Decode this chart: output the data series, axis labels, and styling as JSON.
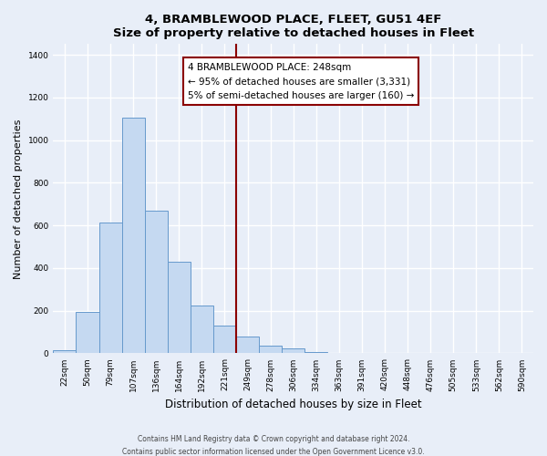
{
  "title1": "4, BRAMBLEWOOD PLACE, FLEET, GU51 4EF",
  "title2": "Size of property relative to detached houses in Fleet",
  "xlabel": "Distribution of detached houses by size in Fleet",
  "ylabel": "Number of detached properties",
  "bar_labels": [
    "22sqm",
    "50sqm",
    "79sqm",
    "107sqm",
    "136sqm",
    "164sqm",
    "192sqm",
    "221sqm",
    "249sqm",
    "278sqm",
    "306sqm",
    "334sqm",
    "363sqm",
    "391sqm",
    "420sqm",
    "448sqm",
    "476sqm",
    "505sqm",
    "533sqm",
    "562sqm",
    "590sqm"
  ],
  "bar_values": [
    15,
    195,
    615,
    1105,
    670,
    430,
    225,
    130,
    80,
    35,
    25,
    5,
    2,
    0,
    0,
    0,
    0,
    0,
    0,
    0,
    0
  ],
  "bar_color": "#c5d9f1",
  "bar_edge_color": "#6699cc",
  "vline_color": "#8b0000",
  "annotation_title": "4 BRAMBLEWOOD PLACE: 248sqm",
  "annotation_line1": "← 95% of detached houses are smaller (3,331)",
  "annotation_line2": "5% of semi-detached houses are larger (160) →",
  "annotation_box_edge": "#8b0000",
  "ylim": [
    0,
    1450
  ],
  "yticks": [
    0,
    200,
    400,
    600,
    800,
    1000,
    1200,
    1400
  ],
  "footer1": "Contains HM Land Registry data © Crown copyright and database right 2024.",
  "footer2": "Contains public sector information licensed under the Open Government Licence v3.0.",
  "bg_color": "#e8eef8",
  "plot_bg_color": "#e8eef8",
  "grid_color": "#ffffff"
}
